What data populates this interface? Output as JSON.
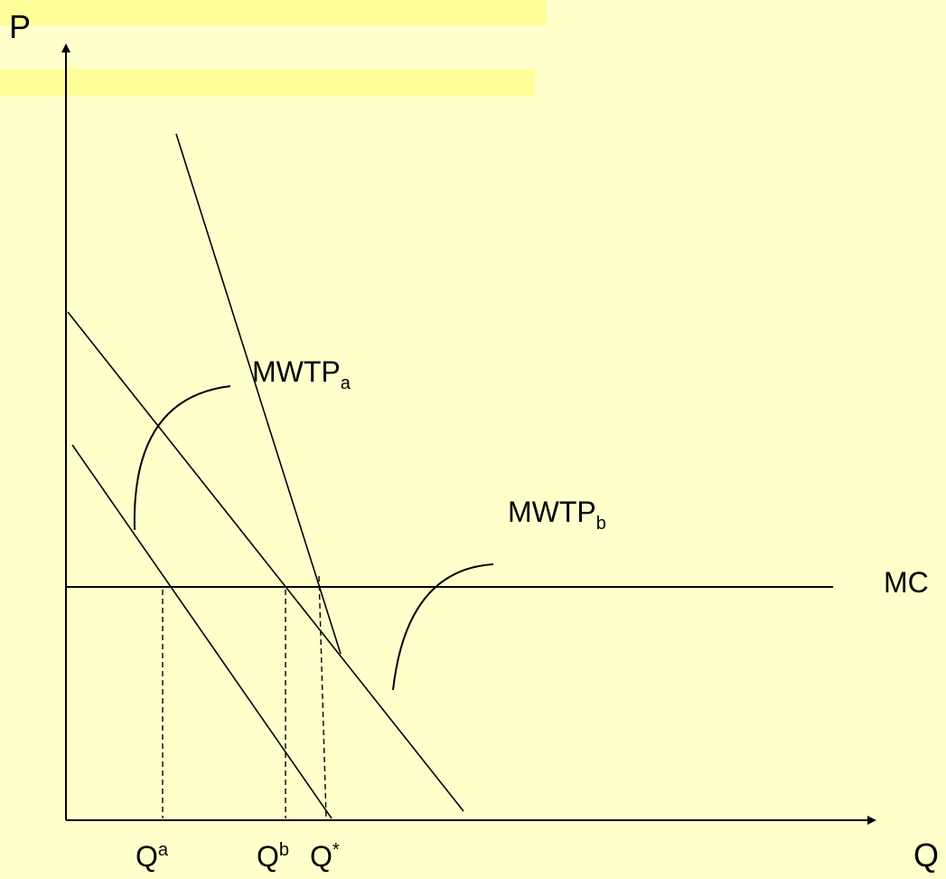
{
  "colors": {
    "background": "#ffffcc",
    "highlight": "#ffff99",
    "stroke": "#000000"
  },
  "axes": {
    "y_label": "P",
    "x_label": "Q"
  },
  "curves": {
    "mwtp_a": {
      "base": "MWTP",
      "sub": "a"
    },
    "mwtp_b": {
      "base": "MWTP",
      "sub": "b"
    },
    "mc": "MC"
  },
  "quantities": {
    "qa": {
      "base": "Q",
      "sup": "a"
    },
    "qb": {
      "base": "Q",
      "sup": "b"
    },
    "qstar": {
      "base": "Q",
      "sup": "*"
    }
  }
}
